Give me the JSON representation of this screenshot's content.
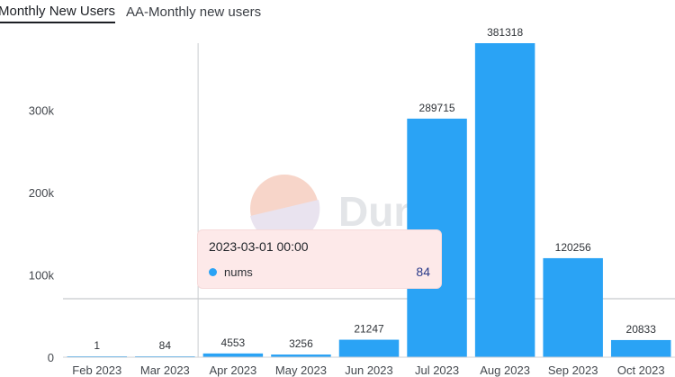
{
  "header": {
    "title": "Monthly New Users",
    "subtitle": "AA-Monthly new users"
  },
  "watermark": "Dune",
  "tooltip": {
    "title": "2023-03-01 00:00",
    "series_name": "nums",
    "value": "84"
  },
  "chart_data": {
    "type": "bar",
    "categories": [
      "Feb 2023",
      "Mar 2023",
      "Apr 2023",
      "May 2023",
      "Jun 2023",
      "Jul 2023",
      "Aug 2023",
      "Sep 2023",
      "Oct 2023"
    ],
    "series": [
      {
        "name": "nums",
        "values": [
          1,
          84,
          4553,
          3256,
          21247,
          289715,
          381318,
          120256,
          20833
        ]
      }
    ],
    "yticks": [
      0,
      100000,
      200000,
      300000
    ],
    "ytick_labels": [
      "0",
      "100k",
      "200k",
      "300k"
    ],
    "ylim": [
      0,
      381318
    ],
    "bar_color": "#2aa3f5",
    "highlight_category": "Mar 2023",
    "grid": true
  }
}
